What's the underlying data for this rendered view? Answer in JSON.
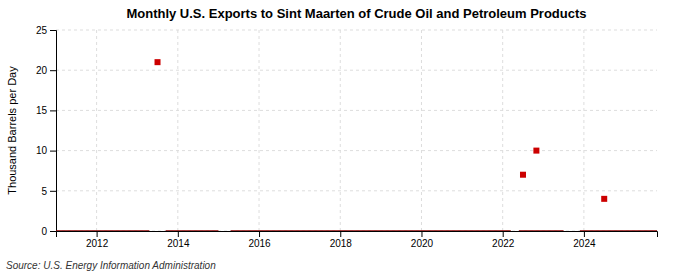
{
  "chart_data": {
    "type": "scatter",
    "title": "Monthly U.S. Exports to Sint Maarten of Crude Oil and Petroleum Products",
    "ylabel": "Thousand Barrels per Day",
    "source": "Source: U.S. Energy Information Administration",
    "xlim": [
      2011.0,
      2025.8
    ],
    "ylim": [
      0,
      25
    ],
    "xticks": [
      2012,
      2014,
      2016,
      2018,
      2020,
      2022,
      2024
    ],
    "yticks": [
      0,
      5,
      10,
      15,
      20,
      25
    ],
    "grid": true,
    "series": [
      {
        "type": "line",
        "color": "#8b0000",
        "x": [
          2011.0,
          2013.3
        ],
        "values": [
          0,
          0
        ]
      },
      {
        "type": "line",
        "color": "#8b0000",
        "x": [
          2013.7,
          2015.0
        ],
        "values": [
          0,
          0
        ]
      },
      {
        "type": "line",
        "color": "#8b0000",
        "x": [
          2015.3,
          2022.2
        ],
        "values": [
          0,
          0
        ]
      },
      {
        "type": "line",
        "color": "#8b0000",
        "x": [
          2022.4,
          2023.5
        ],
        "values": [
          0,
          0
        ]
      },
      {
        "type": "line",
        "color": "#8b0000",
        "x": [
          2023.9,
          2025.8
        ],
        "values": [
          0,
          0
        ]
      },
      {
        "type": "scatter",
        "color": "#cc0000",
        "marker": "square",
        "x": [
          2013.5,
          2022.5,
          2022.83,
          2024.5
        ],
        "values": [
          21.0,
          7.0,
          10.0,
          4.0
        ]
      }
    ]
  }
}
